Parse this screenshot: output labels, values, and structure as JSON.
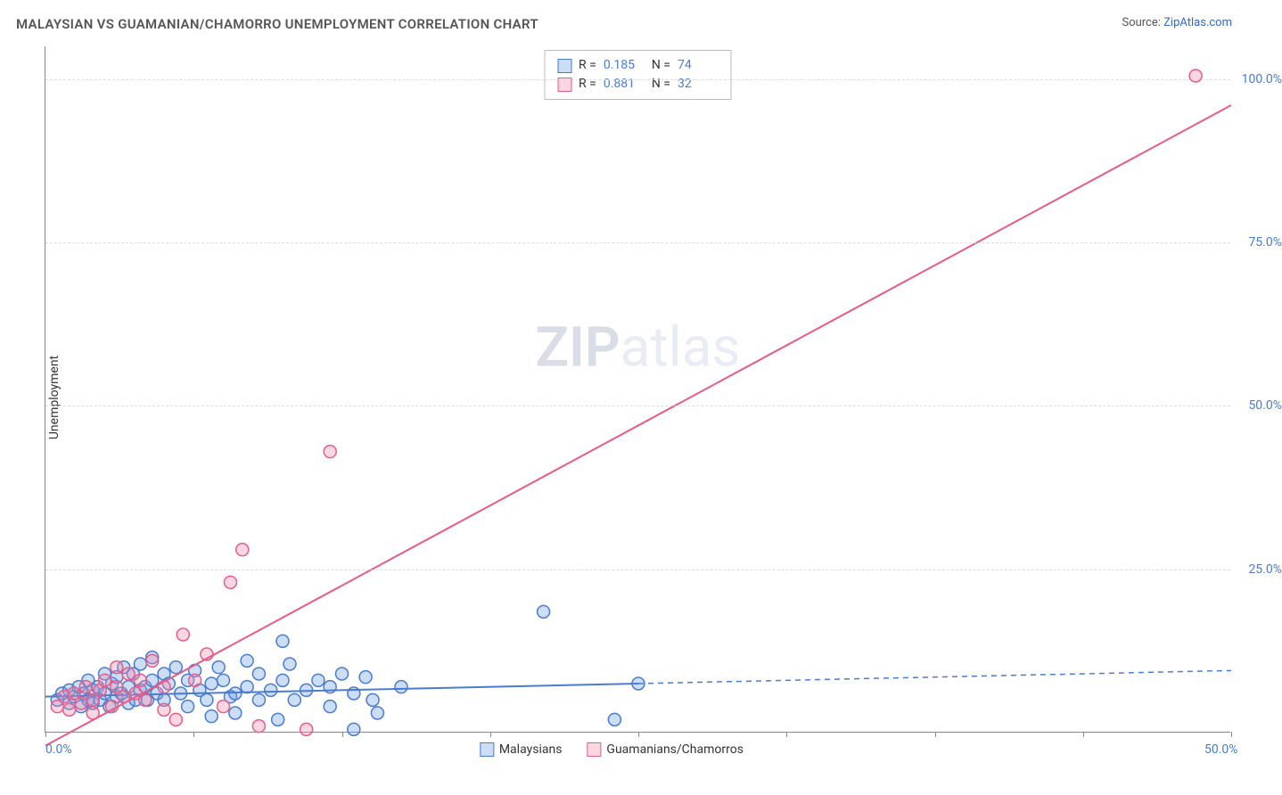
{
  "title": "MALAYSIAN VS GUAMANIAN/CHAMORRO UNEMPLOYMENT CORRELATION CHART",
  "source_prefix": "Source: ",
  "source_name": "ZipAtlas.com",
  "ylabel": "Unemployment",
  "watermark_zip": "ZIP",
  "watermark_atlas": "atlas",
  "chart": {
    "type": "scatter-with-regression",
    "xlim": [
      0,
      50
    ],
    "ylim": [
      0,
      105
    ],
    "xtick_positions": [
      0,
      6.25,
      12.5,
      18.75,
      25,
      31.25,
      37.5,
      43.75,
      50
    ],
    "xtick_labels": {
      "0": "0.0%",
      "50": "50.0%"
    },
    "ytick_positions": [
      25,
      50,
      75,
      100
    ],
    "ytick_labels": {
      "25": "25.0%",
      "50": "50.0%",
      "75": "75.0%",
      "100": "100.0%"
    },
    "grid_color": "#dddddd",
    "background_color": "#ffffff",
    "axis_color": "#888888",
    "tick_label_color": "#4a7bd0",
    "marker_radius": 7,
    "marker_stroke_width": 1.5,
    "regression_line_width": 2,
    "series": [
      {
        "name": "Malaysians",
        "key": "malaysians",
        "fill": "rgba(110,160,230,0.35)",
        "stroke": "#4a7bd0",
        "r_value": "0.185",
        "n_value": "74",
        "regression": {
          "x1": 0,
          "y1": 5.5,
          "x2": 25,
          "y2": 7.5,
          "dash_x1": 25,
          "dash_y1": 7.5,
          "dash_x2": 50,
          "dash_y2": 9.5
        },
        "points": [
          [
            0.5,
            5
          ],
          [
            0.7,
            6
          ],
          [
            1,
            4.5
          ],
          [
            1,
            6.5
          ],
          [
            1.2,
            5.5
          ],
          [
            1.4,
            7
          ],
          [
            1.5,
            4
          ],
          [
            1.6,
            6
          ],
          [
            1.8,
            5
          ],
          [
            1.8,
            8
          ],
          [
            2,
            6.5
          ],
          [
            2,
            4.5
          ],
          [
            2.2,
            7
          ],
          [
            2.3,
            5
          ],
          [
            2.5,
            6
          ],
          [
            2.5,
            9
          ],
          [
            2.7,
            4
          ],
          [
            2.8,
            7.5
          ],
          [
            3,
            5.5
          ],
          [
            3,
            8.5
          ],
          [
            3.2,
            6
          ],
          [
            3.3,
            10
          ],
          [
            3.5,
            4.5
          ],
          [
            3.5,
            7
          ],
          [
            3.7,
            9
          ],
          [
            3.8,
            5
          ],
          [
            4,
            6.5
          ],
          [
            4,
            10.5
          ],
          [
            4.2,
            7
          ],
          [
            4.3,
            5
          ],
          [
            4.5,
            8
          ],
          [
            4.5,
            11.5
          ],
          [
            4.7,
            6
          ],
          [
            5,
            9
          ],
          [
            5,
            5
          ],
          [
            5.2,
            7.5
          ],
          [
            5.5,
            10
          ],
          [
            5.7,
            6
          ],
          [
            6,
            8
          ],
          [
            6,
            4
          ],
          [
            6.3,
            9.5
          ],
          [
            6.5,
            6.5
          ],
          [
            6.8,
            5
          ],
          [
            7,
            7.5
          ],
          [
            7,
            2.5
          ],
          [
            7.3,
            10
          ],
          [
            7.5,
            8
          ],
          [
            7.8,
            5.5
          ],
          [
            8,
            6
          ],
          [
            8,
            3
          ],
          [
            8.5,
            11
          ],
          [
            8.5,
            7
          ],
          [
            9,
            5
          ],
          [
            9,
            9
          ],
          [
            9.5,
            6.5
          ],
          [
            9.8,
            2
          ],
          [
            10,
            8
          ],
          [
            10,
            14
          ],
          [
            10.5,
            5
          ],
          [
            10.3,
            10.5
          ],
          [
            11,
            6.5
          ],
          [
            11.5,
            8
          ],
          [
            12,
            7
          ],
          [
            12,
            4
          ],
          [
            12.5,
            9
          ],
          [
            13,
            6
          ],
          [
            13.5,
            8.5
          ],
          [
            13.8,
            5
          ],
          [
            14,
            3
          ],
          [
            15,
            7
          ],
          [
            13,
            0.5
          ],
          [
            21,
            18.5
          ],
          [
            24,
            2
          ],
          [
            25,
            7.5
          ]
        ]
      },
      {
        "name": "Guamanians/Chamorros",
        "key": "guamanians",
        "fill": "rgba(240,140,170,0.35)",
        "stroke": "#e85b8a",
        "r_value": "0.881",
        "n_value": "32",
        "regression": {
          "x1": 0,
          "y1": -2,
          "x2": 50,
          "y2": 96,
          "dash_x1": 0,
          "dash_y1": 0,
          "dash_x2": 0,
          "dash_y2": 0
        },
        "points": [
          [
            0.5,
            4
          ],
          [
            0.8,
            5.5
          ],
          [
            1,
            3.5
          ],
          [
            1.2,
            6
          ],
          [
            1.5,
            4.5
          ],
          [
            1.7,
            7
          ],
          [
            2,
            5
          ],
          [
            2,
            3
          ],
          [
            2.3,
            6.5
          ],
          [
            2.5,
            8
          ],
          [
            2.8,
            4
          ],
          [
            3,
            7
          ],
          [
            3,
            10
          ],
          [
            3.3,
            5.5
          ],
          [
            3.5,
            9
          ],
          [
            3.8,
            6
          ],
          [
            4,
            8
          ],
          [
            4.2,
            5
          ],
          [
            4.5,
            11
          ],
          [
            5,
            7
          ],
          [
            5,
            3.5
          ],
          [
            5.5,
            2
          ],
          [
            5.8,
            15
          ],
          [
            6.3,
            8
          ],
          [
            6.8,
            12
          ],
          [
            7.5,
            4
          ],
          [
            7.8,
            23
          ],
          [
            8.3,
            28
          ],
          [
            9,
            1
          ],
          [
            12,
            43
          ],
          [
            11,
            0.5
          ],
          [
            48.5,
            100.5
          ]
        ]
      }
    ]
  },
  "stats_box": {
    "r_label": "R =",
    "n_label": "N ="
  },
  "legend": {
    "malaysians": "Malaysians",
    "guamanians": "Guamanians/Chamorros"
  }
}
